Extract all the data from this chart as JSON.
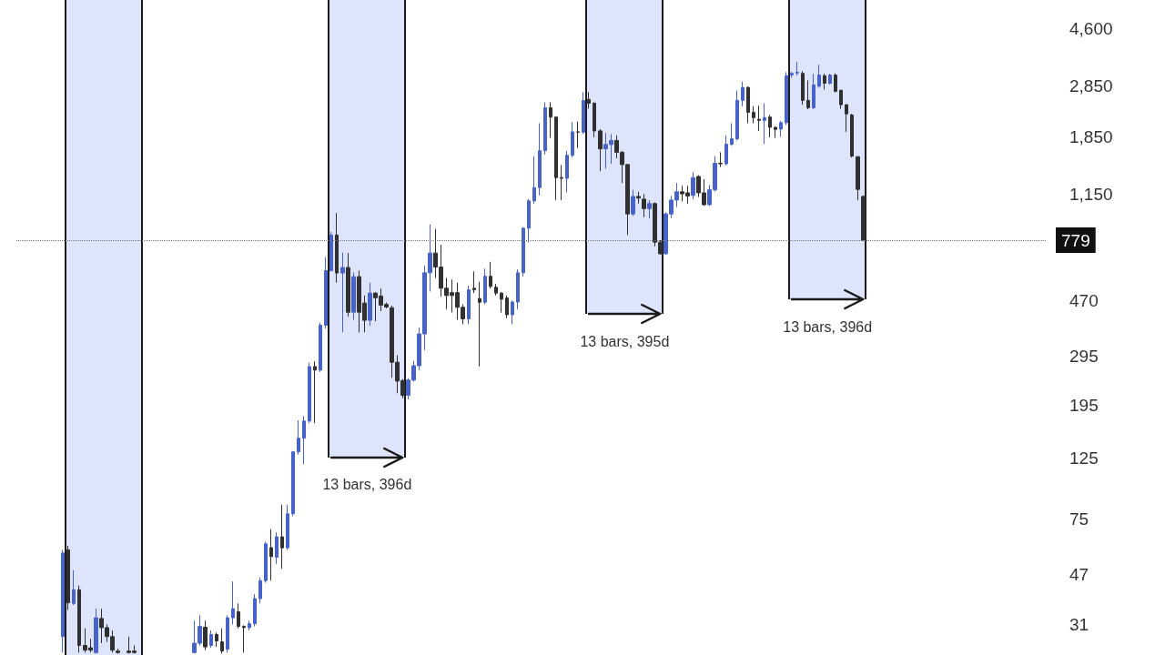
{
  "chart_data": {
    "type": "candlestick",
    "log": true,
    "tick_labels": "y",
    "annotations": [
      "13 bars, 396d",
      "13 bars, 395d",
      "13 bars, 396d"
    ],
    "ylim": [
      24,
      5850
    ],
    "yticks": [
      31,
      47,
      75,
      125,
      195,
      295,
      470,
      {
        "value": 1150,
        "label": "1,150"
      },
      {
        "value": 1850,
        "label": "1,850"
      },
      {
        "value": 2850,
        "label": "2,850"
      },
      {
        "value": 4600,
        "label": "4,600"
      }
    ],
    "ref_lines": [
      {
        "axis": "y",
        "value": 779,
        "label": "779",
        "line_style": "dotted"
      }
    ],
    "categories": [
      null,
      null,
      null,
      null,
      null,
      null,
      null,
      null,
      null,
      null,
      null,
      null,
      null,
      null,
      null,
      null,
      null,
      null,
      null,
      null,
      null,
      null,
      null,
      null,
      null,
      null,
      null,
      null,
      null,
      null,
      null,
      null,
      null,
      null,
      null,
      null,
      null,
      null,
      null,
      null,
      null,
      null,
      null,
      null,
      null,
      null,
      null,
      null,
      null,
      null,
      null,
      null,
      null,
      null,
      null,
      null,
      null,
      null,
      null,
      null,
      null,
      null,
      null,
      null,
      null,
      null,
      null,
      null,
      null,
      null,
      null,
      null,
      null,
      null,
      null,
      null,
      null,
      null,
      null,
      null,
      null,
      null,
      null,
      null,
      null,
      null,
      null,
      null,
      null,
      null,
      null,
      null,
      null,
      null,
      null,
      null,
      null,
      null,
      null,
      null,
      null,
      null,
      null,
      null,
      null,
      null,
      null,
      null,
      null,
      null,
      null,
      null,
      null,
      null,
      null,
      null,
      null,
      null,
      null,
      null,
      null,
      null,
      null,
      null,
      null,
      null,
      null,
      null,
      null,
      null,
      null,
      null,
      null,
      null,
      null,
      null,
      null,
      null,
      null,
      null,
      null,
      null,
      null,
      null,
      null,
      null,
      null,
      null,
      null,
      null,
      null,
      null,
      null,
      null,
      null,
      null,
      null,
      null,
      null,
      null,
      null,
      null,
      null,
      null,
      null,
      null,
      null,
      null,
      null,
      null,
      null,
      null,
      null,
      null,
      null,
      null,
      null,
      null,
      null,
      null,
      null,
      null,
      null,
      null,
      null,
      null,
      null,
      null
    ],
    "ohlc": [
      null,
      null,
      null,
      null,
      null,
      null,
      null,
      null,
      [
        28,
        58,
        24.5,
        56.5
      ],
      [
        58,
        60,
        35,
        37.2
      ],
      [
        37,
        48.9,
        36.5,
        41.5
      ],
      [
        41.5,
        43,
        24.5,
        26
      ],
      [
        26,
        30,
        24.5,
        25
      ],
      [
        25.5,
        27.5,
        24.5,
        25
      ],
      [
        24.5,
        35.4,
        24.3,
        32.8
      ],
      [
        32.6,
        35.4,
        26.5,
        30.2
      ],
      [
        30.2,
        31,
        26.8,
        28
      ],
      [
        28,
        29.5,
        24.5,
        25
      ],
      [
        24.8,
        25.3,
        24.3,
        24.5
      ],
      null,
      [
        24.8,
        28,
        24.3,
        24.5
      ],
      [
        24.8,
        26,
        24.3,
        24.5
      ],
      null,
      null,
      null,
      null,
      null,
      null,
      null,
      null,
      null,
      null,
      [
        24.5,
        32,
        24.3,
        26.5
      ],
      [
        26.5,
        33.5,
        26,
        30.5
      ],
      [
        30.3,
        32,
        25,
        25.7
      ],
      [
        26,
        29.5,
        25.5,
        28.5
      ],
      [
        28.5,
        29,
        25.7,
        27
      ],
      [
        26.8,
        30,
        24.3,
        24.8
      ],
      [
        25.2,
        33.5,
        24.5,
        32.8
      ],
      [
        32.8,
        44.5,
        31,
        35.4
      ],
      [
        34.5,
        37,
        30,
        30.5
      ],
      [
        30.5,
        30.8,
        24.5,
        30.2
      ],
      [
        30.2,
        32,
        29.5,
        31.2
      ],
      [
        31.2,
        40,
        30.5,
        38.5
      ],
      [
        38.5,
        46,
        37,
        44.8
      ],
      [
        44.8,
        62,
        44,
        61
      ],
      [
        59.1,
        69,
        44.8,
        54.8
      ],
      [
        54.5,
        67.3,
        51.5,
        64.7
      ],
      [
        64.7,
        84.7,
        49.5,
        59
      ],
      [
        59,
        84.7,
        58,
        78.5
      ],
      [
        78.5,
        133,
        77,
        132
      ],
      [
        132,
        172,
        129,
        148
      ],
      [
        148,
        178,
        119,
        171
      ],
      [
        171,
        279,
        168,
        270
      ],
      [
        270,
        282,
        168,
        262
      ],
      [
        262,
        390,
        258,
        382
      ],
      [
        382,
        676,
        372,
        604
      ],
      [
        604,
        835,
        600,
        814
      ],
      [
        814,
        979,
        546,
        592
      ],
      [
        592,
        702,
        360,
        620
      ],
      [
        620,
        700,
        410,
        426
      ],
      [
        426,
        595,
        400,
        574
      ],
      [
        574,
        604,
        360,
        426
      ],
      [
        460,
        490,
        360,
        398
      ],
      [
        398,
        546,
        380,
        500
      ],
      [
        500,
        505,
        395,
        481
      ],
      [
        488,
        520,
        430,
        452
      ],
      [
        455,
        462,
        440,
        445
      ],
      [
        442,
        450,
        246,
        280
      ],
      [
        280,
        297,
        216,
        239
      ],
      [
        240,
        243,
        207,
        212
      ],
      [
        212,
        245,
        205,
        241
      ],
      [
        241,
        283,
        238,
        272
      ],
      [
        272,
        375,
        262,
        355
      ],
      [
        355,
        630,
        310,
        593
      ],
      [
        593,
        889,
        507,
        700
      ],
      [
        700,
        857,
        568,
        622
      ],
      [
        622,
        750,
        485,
        521
      ],
      [
        521,
        568,
        437,
        490
      ],
      [
        502,
        560,
        425,
        490
      ],
      [
        502,
        546,
        400,
        444
      ],
      [
        444,
        455,
        385,
        403
      ],
      [
        403,
        532,
        385,
        514
      ],
      [
        521,
        600,
        500,
        514
      ],
      [
        478,
        550,
        270,
        463
      ],
      [
        463,
        614,
        455,
        576
      ],
      [
        576,
        650,
        520,
        529
      ],
      [
        525,
        540,
        490,
        500
      ],
      [
        500,
        505,
        425,
        475
      ],
      [
        480,
        490,
        405,
        417
      ],
      [
        417,
        470,
        385,
        464
      ],
      [
        464,
        610,
        437,
        593
      ],
      [
        593,
        870,
        575,
        862
      ],
      [
        862,
        1100,
        765,
        1084
      ],
      [
        1084,
        1578,
        1060,
        1212
      ],
      [
        1212,
        2080,
        1135,
        1652
      ],
      [
        1652,
        2480,
        1600,
        2370
      ],
      [
        2370,
        2480,
        1840,
        2190
      ],
      [
        2190,
        2200,
        1092,
        1318
      ],
      [
        1318,
        1465,
        1092,
        1310
      ],
      [
        1310,
        1650,
        1165,
        1590
      ],
      [
        1590,
        2100,
        1560,
        1935
      ],
      [
        1935,
        2110,
        1690,
        1930
      ],
      [
        1930,
        2700,
        1900,
        2518
      ],
      [
        2540,
        2700,
        2350,
        2460
      ],
      [
        2460,
        2480,
        1850,
        1950
      ],
      [
        1950,
        1980,
        1390,
        1678
      ],
      [
        1678,
        1920,
        1420,
        1740
      ],
      [
        1740,
        1900,
        1480,
        1800
      ],
      [
        1800,
        1880,
        1550,
        1630
      ],
      [
        1630,
        1650,
        1260,
        1470
      ],
      [
        1470,
        1480,
        814,
        972
      ],
      [
        972,
        1190,
        955,
        1125
      ],
      [
        1125,
        1170,
        1060,
        1110
      ],
      [
        1100,
        1150,
        945,
        1016
      ],
      [
        1016,
        1090,
        935,
        1060
      ],
      [
        1060,
        1070,
        740,
        767
      ],
      [
        767,
        780,
        690,
        696
      ],
      [
        696,
        985,
        690,
        972
      ],
      [
        972,
        1130,
        940,
        1092
      ],
      [
        1092,
        1260,
        1030,
        1170
      ],
      [
        1170,
        1230,
        1080,
        1150
      ],
      [
        1160,
        1230,
        1060,
        1130
      ],
      [
        1135,
        1380,
        1100,
        1318
      ],
      [
        1330,
        1345,
        1120,
        1160
      ],
      [
        1160,
        1300,
        1040,
        1050
      ],
      [
        1050,
        1240,
        1040,
        1190
      ],
      [
        1190,
        1580,
        1170,
        1487
      ],
      [
        1487,
        1630,
        1440,
        1480
      ],
      [
        1480,
        1880,
        1460,
        1745
      ],
      [
        1745,
        2080,
        1720,
        1825
      ],
      [
        1825,
        2740,
        1800,
        2520
      ],
      [
        2520,
        2950,
        2400,
        2810
      ],
      [
        2810,
        2830,
        2080,
        2280
      ],
      [
        2280,
        2400,
        2080,
        2180
      ],
      [
        2150,
        2410,
        1950,
        2130
      ],
      [
        2130,
        2460,
        1745,
        2180
      ],
      [
        2190,
        2230,
        1850,
        2010
      ],
      [
        2010,
        2020,
        1840,
        1975
      ],
      [
        1980,
        2120,
        1860,
        2090
      ],
      [
        2090,
        3190,
        2050,
        3100
      ],
      [
        3120,
        3200,
        3050,
        3160
      ],
      [
        3170,
        3480,
        3100,
        3190
      ],
      [
        3160,
        3220,
        2430,
        2520
      ],
      [
        2520,
        2980,
        2340,
        2370
      ],
      [
        2370,
        3150,
        2340,
        2870
      ],
      [
        2840,
        3400,
        2800,
        3115
      ],
      [
        3100,
        3150,
        2760,
        2910
      ],
      [
        2910,
        3150,
        2880,
        3115
      ],
      [
        3115,
        3160,
        2690,
        2720
      ],
      [
        2740,
        2760,
        2350,
        2430
      ],
      [
        2430,
        2440,
        1935,
        2250
      ],
      [
        2230,
        2250,
        1560,
        1578
      ],
      [
        1570,
        1580,
        1092,
        1194
      ],
      [
        1125,
        1135,
        779,
        779
      ],
      null,
      null,
      null,
      null,
      null,
      null,
      null,
      null,
      null,
      null,
      null,
      null,
      null,
      null,
      null,
      null,
      null,
      null,
      null,
      null,
      null,
      null,
      null,
      null,
      null,
      null,
      null,
      null,
      null,
      null,
      null,
      null,
      null
    ]
  }
}
